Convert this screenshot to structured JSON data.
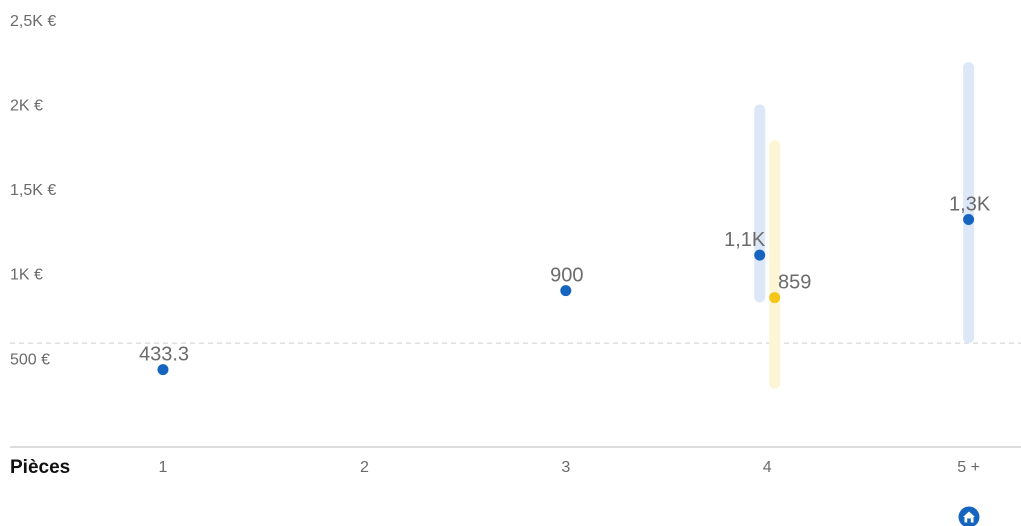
{
  "chart_data": {
    "type": "scatter",
    "xlabel": "Pièces",
    "categories": [
      "1",
      "2",
      "3",
      "4",
      "5 +"
    ],
    "y_ticks": [
      {
        "value": 500,
        "label": "500 €"
      },
      {
        "value": 1000,
        "label": "1K €"
      },
      {
        "value": 1500,
        "label": "1,5K €"
      },
      {
        "value": 2000,
        "label": "2K €"
      },
      {
        "value": 2500,
        "label": "2,5K €"
      }
    ],
    "ylim": [
      0,
      2500
    ],
    "reference_line": 590,
    "grid": false,
    "series": [
      {
        "color": "#1565c0",
        "range_color": "#dce8f7",
        "points": [
          {
            "category": "1",
            "value": 433.3,
            "label": "433.3"
          },
          {
            "category": "3",
            "value": 900,
            "label": "900"
          },
          {
            "category": "4",
            "value": 1110,
            "label": "1,1K",
            "range": [
              830,
              2000
            ]
          },
          {
            "category": "5 +",
            "value": 1320,
            "label": "1,3K",
            "range": [
              590,
              2250
            ]
          }
        ]
      },
      {
        "color": "#f5c518",
        "range_color": "#fdf6d6",
        "points": [
          {
            "category": "4",
            "value": 859,
            "label": "859",
            "range": [
              320,
              1790
            ]
          }
        ]
      }
    ],
    "home_icon": "home-icon",
    "colors": {
      "axis": "#c8c8c8",
      "reference": "#d9d9d9",
      "text": "#6b6b6b"
    }
  }
}
